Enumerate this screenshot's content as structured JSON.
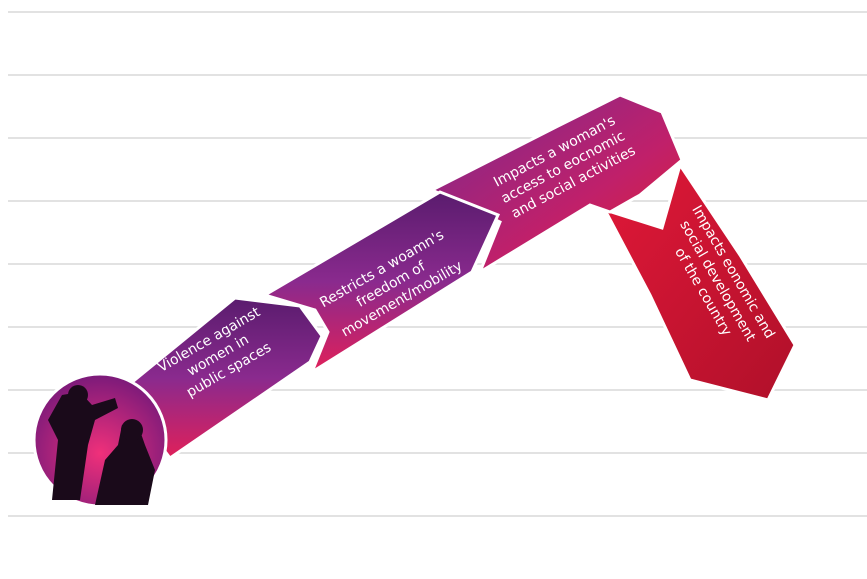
{
  "steps": [
    {
      "lines": [
        "Violence against",
        "women in",
        "public spaces"
      ]
    },
    {
      "lines": [
        "Restricts a woamn's",
        "freedom of",
        "movement/mobility"
      ]
    },
    {
      "lines": [
        "Impacts a woman's",
        "access to eocnomic",
        "and social activities"
      ]
    },
    {
      "lines": [
        "Impacts eonomic and",
        "social development",
        "of the country"
      ]
    }
  ]
}
